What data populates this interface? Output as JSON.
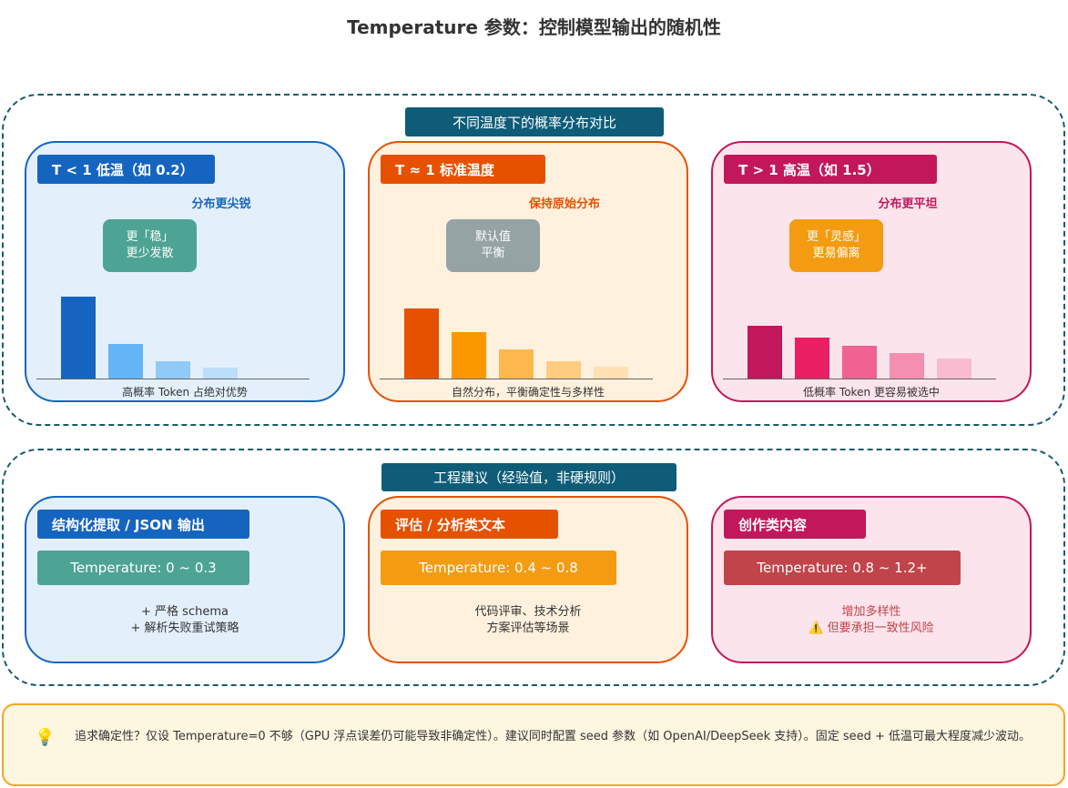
{
  "title": "Temperature 参数：控制模型输出的随机性",
  "section1": {
    "label": "不同温度下的概率分布对比",
    "cards": [
      {
        "header": "T < 1 低温（如 0.2）",
        "subtitle": "分布更尖锐",
        "note": [
          "更「稳」",
          "更少发散"
        ],
        "caption": "高概率 Token 占绝对优势",
        "bars": [
          90,
          38,
          19,
          12
        ],
        "bar_colors": [
          "#1565c0",
          "#64b5f6",
          "#90caf9",
          "#bbdefb"
        ],
        "color": "#1565c0",
        "bg": "#e3f0fc",
        "note_bg": "#4da394"
      },
      {
        "header": "T ≈ 1 标准温度",
        "subtitle": "保持原始分布",
        "note": [
          "默认值",
          "平衡"
        ],
        "caption": "自然分布，平衡确定性与多样性",
        "bars": [
          77,
          51,
          32,
          19,
          13
        ],
        "bar_colors": [
          "#e65100",
          "#fb9800",
          "#ffb74d",
          "#ffcc80",
          "#ffe0b2"
        ],
        "color": "#e65100",
        "bg": "#fff1de",
        "note_bg": "#95a3a4"
      },
      {
        "header": "T > 1 高温（如 1.5）",
        "subtitle": "分布更平坦",
        "note": [
          "更「灵感」",
          "更易偏离"
        ],
        "caption": "低概率 Token 更容易被选中",
        "bars": [
          58,
          45,
          36,
          28,
          22
        ],
        "bar_colors": [
          "#c2185b",
          "#e91e63",
          "#f06292",
          "#f48fb1",
          "#f8bbd0"
        ],
        "color": "#c2185b",
        "bg": "#fce4ec",
        "note_bg": "#f39c12"
      }
    ]
  },
  "section2": {
    "label": "工程建议（经验值，非硬规则）",
    "cards": [
      {
        "header": "结构化提取 / JSON 输出",
        "temp": "Temperature: 0 ~ 0.3",
        "notes": [
          "+ 严格 schema",
          "+ 解析失败重试策略"
        ],
        "temp_bg": "#4da394",
        "note_color": "#333"
      },
      {
        "header": "评估 / 分析类文本",
        "temp": "Temperature: 0.4 ~ 0.8",
        "notes": [
          "代码评审、技术分析",
          "方案评估等场景"
        ],
        "temp_bg": "#f39c12",
        "note_color": "#333"
      },
      {
        "header": "创作类内容",
        "temp": "Temperature: 0.8 ~ 1.2+",
        "notes": [
          "增加多样性",
          "⚠️ 但要承担一致性风险"
        ],
        "temp_bg": "#c0444a",
        "note_color": "#c0444a"
      }
    ]
  },
  "tip": {
    "icon": "lightbulb-icon",
    "text": "追求确定性？仅设 Temperature=0 不够（GPU 浮点误差仍可能导致非确定性）。建议同时配置 seed 参数（如 OpenAI/DeepSeek 支持）。固定 seed + 低温可最大程度减少波动。"
  }
}
